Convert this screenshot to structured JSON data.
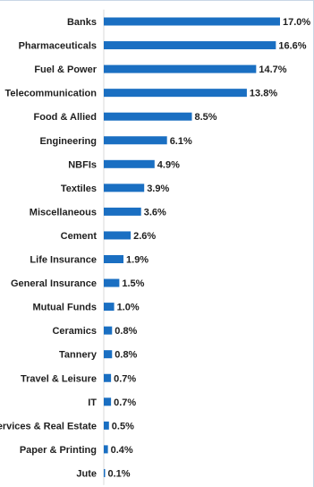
{
  "chart_data": {
    "type": "bar",
    "orientation": "horizontal",
    "categories": [
      "Banks",
      "Pharmaceuticals",
      "Fuel & Power",
      "Telecommunication",
      "Food & Allied",
      "Engineering",
      "NBFIs",
      "Textiles",
      "Miscellaneous",
      "Cement",
      "Life Insurance",
      "General Insurance",
      "Mutual Funds",
      "Ceramics",
      "Tannery",
      "Travel & Leisure",
      "IT",
      "Services & Real Estate",
      "Paper & Printing",
      "Jute"
    ],
    "values": [
      17.0,
      16.6,
      14.7,
      13.8,
      8.5,
      6.1,
      4.9,
      3.9,
      3.6,
      2.6,
      1.9,
      1.5,
      1.0,
      0.8,
      0.8,
      0.7,
      0.7,
      0.5,
      0.4,
      0.1
    ],
    "value_labels": [
      "17.0%",
      "16.6%",
      "14.7%",
      "13.8%",
      "8.5%",
      "6.1%",
      "4.9%",
      "3.9%",
      "3.6%",
      "2.6%",
      "1.9%",
      "1.5%",
      "1.0%",
      "0.8%",
      "0.8%",
      "0.7%",
      "0.7%",
      "0.5%",
      "0.4%",
      "0.1%"
    ],
    "title": "",
    "xlabel": "",
    "ylabel": "",
    "xlim": [
      0,
      17.0
    ],
    "grid": false,
    "legend": "none",
    "bar_color": "#1a6fc2"
  }
}
